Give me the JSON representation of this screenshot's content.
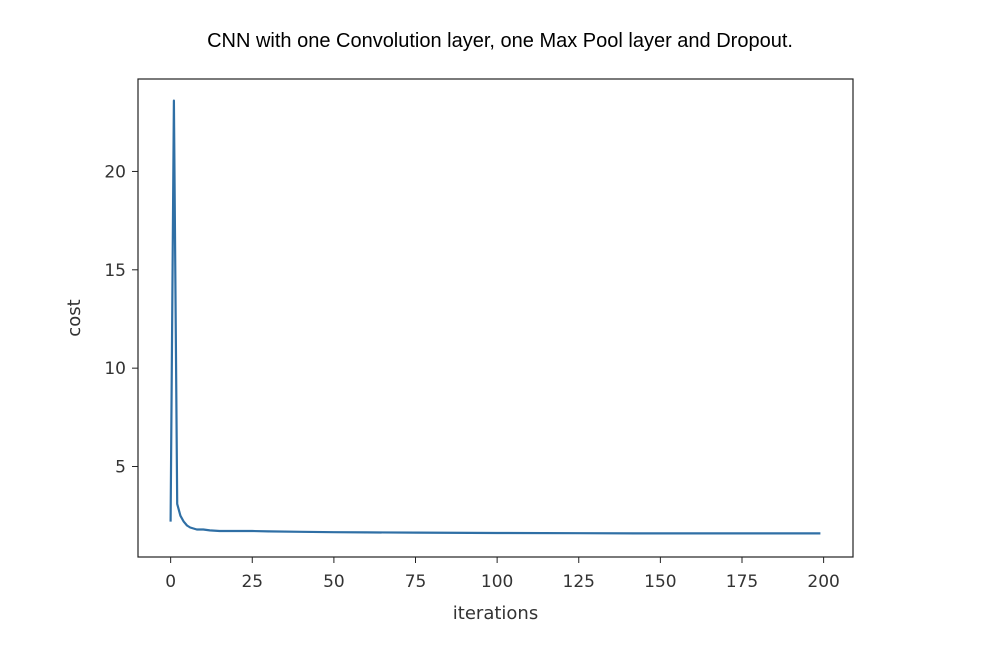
{
  "chart_data": {
    "type": "line",
    "title": "CNN with one Convolution layer, one Max Pool layer and Dropout.",
    "xlabel": "iterations",
    "ylabel": "cost",
    "xlim": [
      -10,
      209
    ],
    "ylim": [
      0.4,
      24.7
    ],
    "xticks": [
      0,
      25,
      50,
      75,
      100,
      125,
      150,
      175,
      200
    ],
    "yticks": [
      5,
      10,
      15,
      20
    ],
    "grid": false,
    "line_color": "#2f6fa5",
    "series": [
      {
        "x": [
          0,
          1,
          2,
          3,
          4,
          5,
          6,
          7,
          8,
          10,
          12,
          15,
          20,
          25,
          30,
          40,
          50,
          60,
          75,
          100,
          125,
          150,
          175,
          199
        ],
        "values": [
          2.2,
          23.6,
          3.1,
          2.5,
          2.2,
          2.0,
          1.9,
          1.85,
          1.8,
          1.8,
          1.75,
          1.72,
          1.72,
          1.72,
          1.7,
          1.68,
          1.66,
          1.65,
          1.64,
          1.62,
          1.61,
          1.6,
          1.6,
          1.6
        ]
      }
    ]
  }
}
